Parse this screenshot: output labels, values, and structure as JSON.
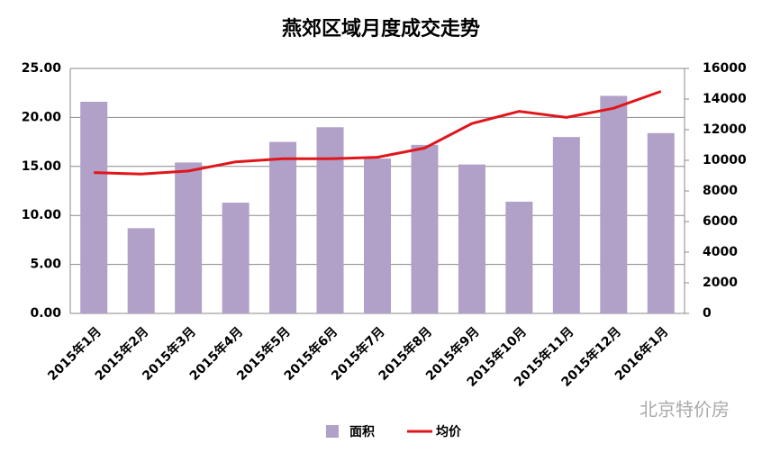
{
  "chart_data": {
    "type": "bar_line",
    "title": "燕郊区域月度成交走势",
    "categories": [
      "2015年1月",
      "2015年2月",
      "2015年3月",
      "2015年4月",
      "2015年5月",
      "2015年6月",
      "2015年7月",
      "2015年8月",
      "2015年9月",
      "2015年10月",
      "2015年11月",
      "2015年12月",
      "2016年1月"
    ],
    "series": [
      {
        "name": "面积",
        "type": "bar",
        "color": "#b1a0c7",
        "values": [
          21.6,
          8.7,
          15.4,
          11.3,
          17.5,
          19.0,
          15.8,
          17.2,
          15.2,
          11.4,
          18.0,
          22.2,
          18.4
        ]
      },
      {
        "name": "均价",
        "type": "line",
        "axis": "y2",
        "color": "#e0161b",
        "values": [
          9200,
          9100,
          9300,
          9900,
          10100,
          10100,
          10200,
          10800,
          12400,
          13200,
          12800,
          13400,
          14500
        ]
      }
    ],
    "ylim": [
      0,
      25
    ],
    "yticks": [
      {
        "value": 0,
        "label": "0.00"
      },
      {
        "value": 5,
        "label": "5.00"
      },
      {
        "value": 10,
        "label": "10.00"
      },
      {
        "value": 15,
        "label": "15.00"
      },
      {
        "value": 20,
        "label": "20.00"
      },
      {
        "value": 25,
        "label": "25.00"
      }
    ],
    "y2lim": [
      0,
      16000
    ],
    "y2ticks": [
      0,
      2000,
      4000,
      6000,
      8000,
      10000,
      12000,
      14000,
      16000
    ],
    "grid": true,
    "legend": "bottom",
    "watermark": "北京特价房"
  }
}
